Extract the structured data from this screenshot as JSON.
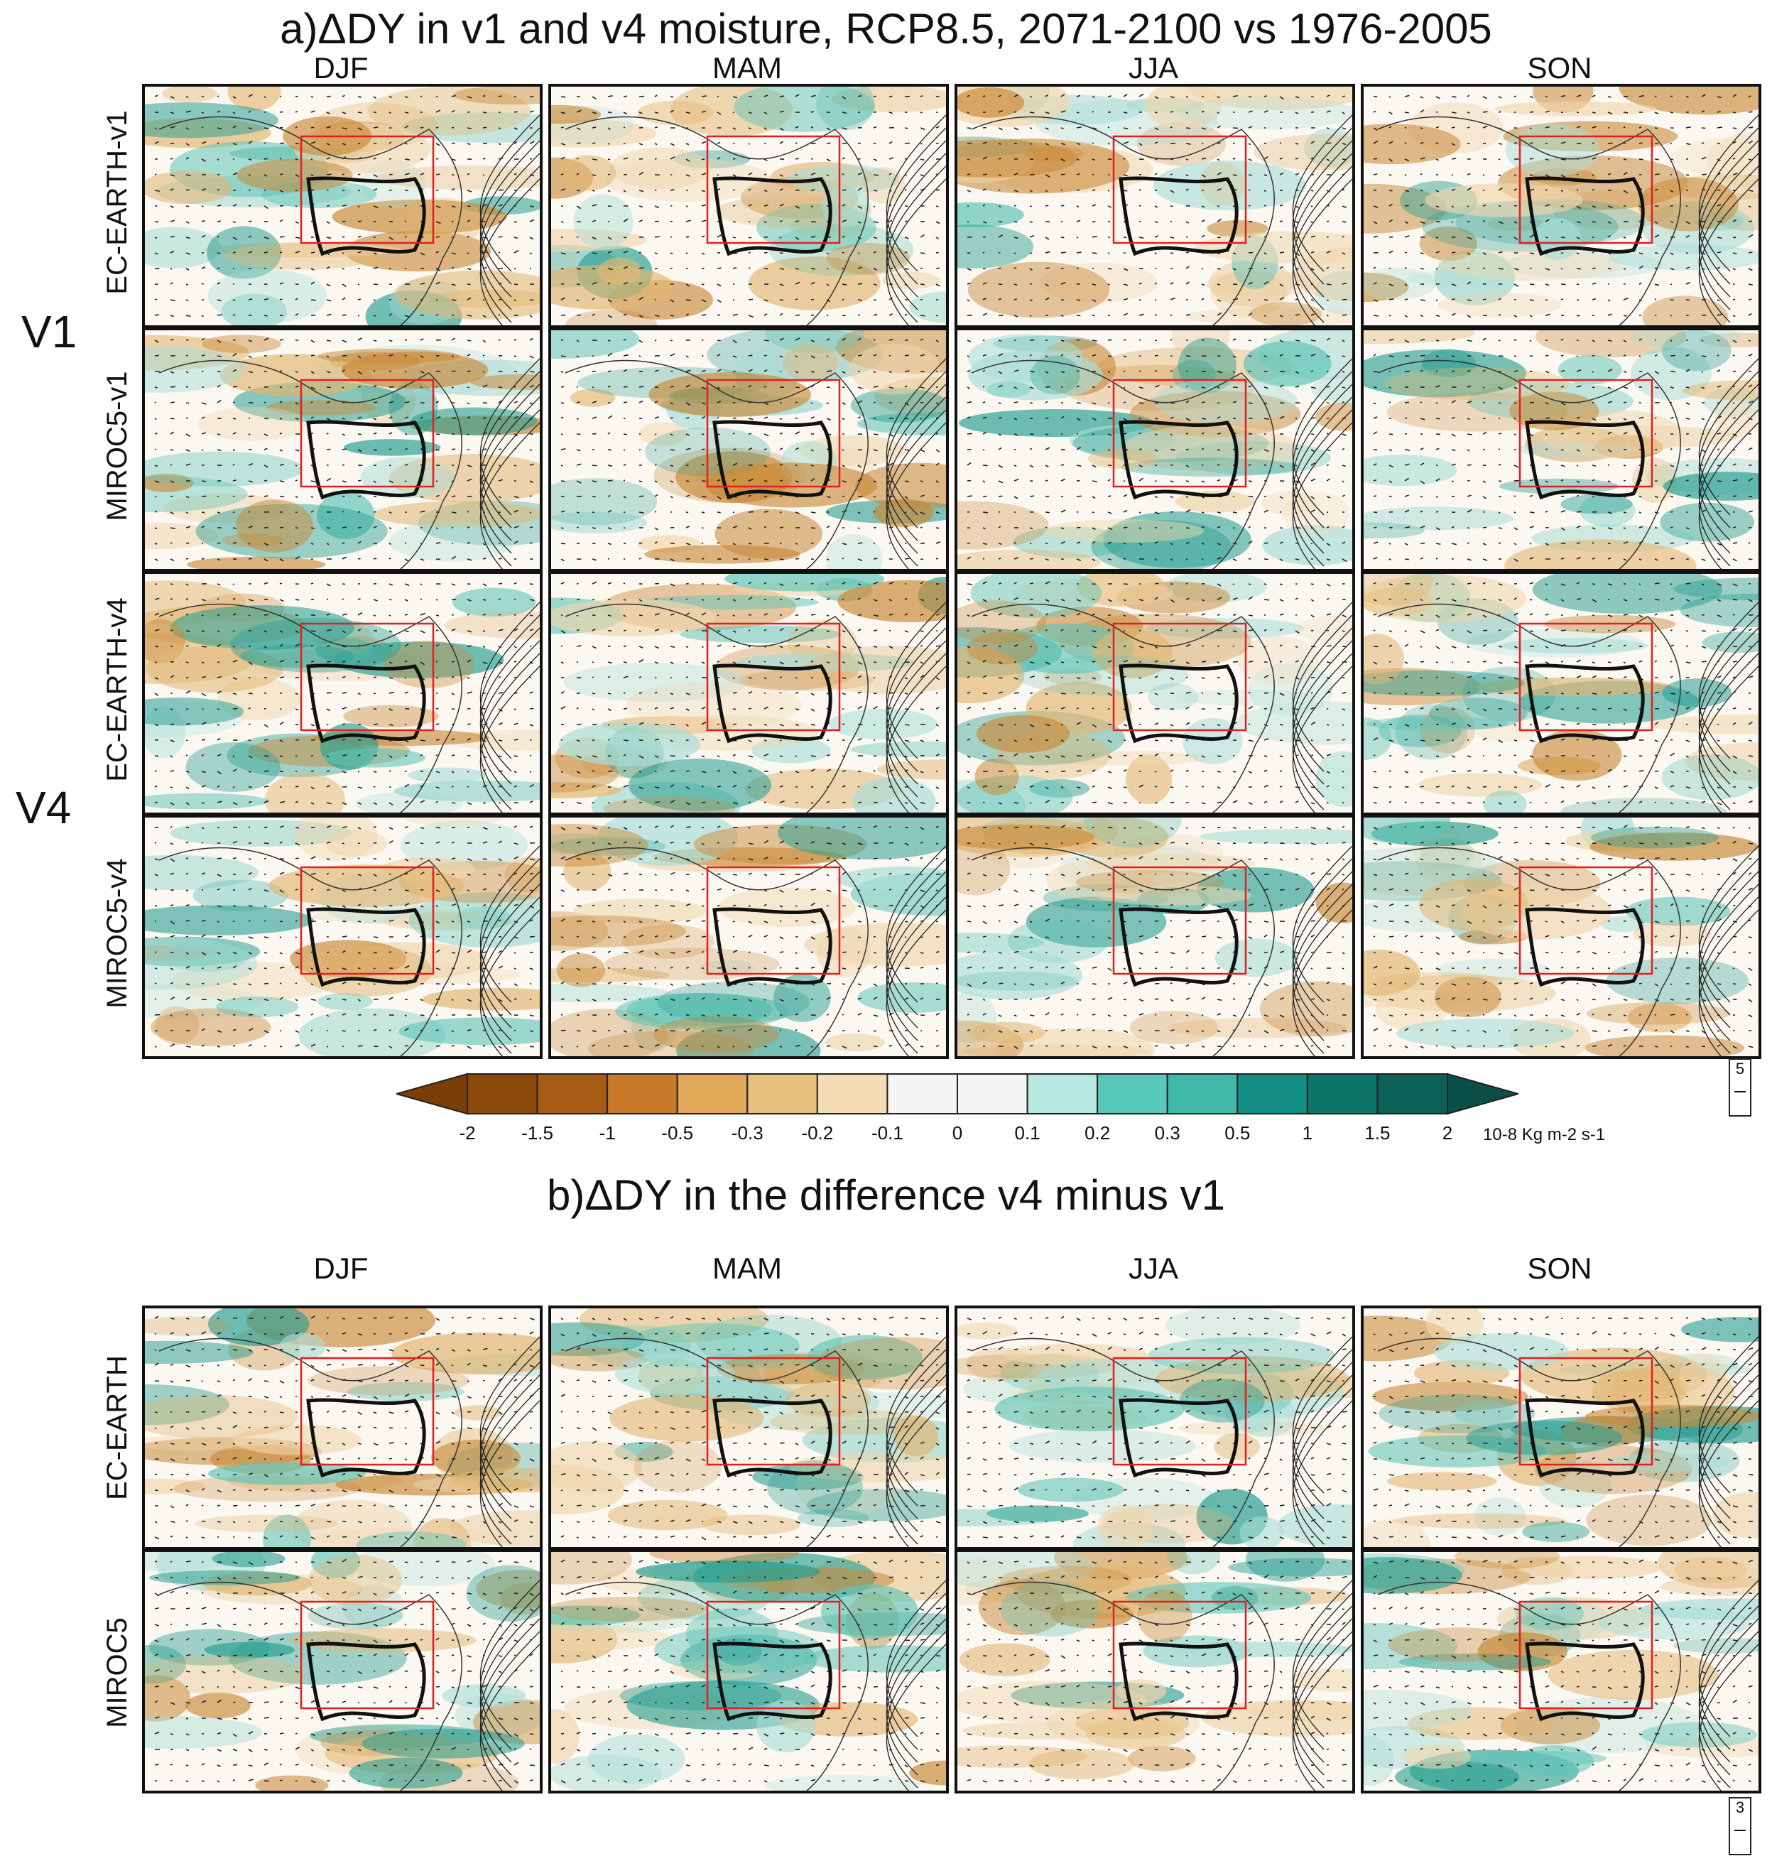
{
  "figure": {
    "part_a": {
      "title": "a)ΔDY in v1 and v4 moisture, RCP8.5, 2071-2100 vs 1976-2005",
      "seasons": [
        "DJF",
        "MAM",
        "JJA",
        "SON"
      ],
      "group_labels": [
        "V1",
        "V4"
      ],
      "rows": [
        "EC-EARTH-v1",
        "MIROC5-v1",
        "EC-EARTH-v4",
        "MIROC5-v4"
      ]
    },
    "part_b": {
      "title": "b)ΔDY in the difference v4 minus v1",
      "seasons": [
        "DJF",
        "MAM",
        "JJA",
        "SON"
      ],
      "rows": [
        "EC-EARTH",
        "MIROC5"
      ]
    },
    "colorbar": {
      "ticks": [
        "-2",
        "-1.5",
        "-1",
        "-0.5",
        "-0.3",
        "-0.2",
        "-0.1",
        "0",
        "0.1",
        "0.2",
        "0.3",
        "0.5",
        "1",
        "1.5",
        "2"
      ],
      "unit": "10-8 Kg m-2 s-1",
      "colors": [
        "#8b4a0c",
        "#a65c14",
        "#c87a2a",
        "#e0a858",
        "#e8c080",
        "#f4dcb4",
        "#f4f4f4",
        "#f4f4f4",
        "#b8e8e2",
        "#58c8ba",
        "#40b8aa",
        "#138f85",
        "#0d7468",
        "#0b6058"
      ]
    },
    "reference_vectors": {
      "part_a": "5",
      "part_b": "3"
    }
  }
}
